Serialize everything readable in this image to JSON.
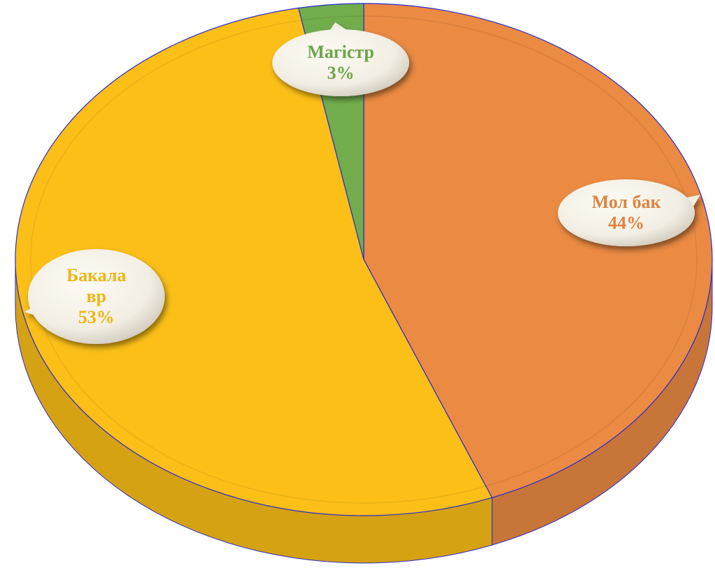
{
  "chart_data": {
    "type": "pie",
    "categories": [
      "Мол бак",
      "Бакалавр",
      "Магістр"
    ],
    "values": [
      44,
      53,
      3
    ],
    "value_labels": [
      "44%",
      "53%",
      "3%"
    ],
    "colors": [
      "#ea8a43",
      "#fbbf18",
      "#72ad4c"
    ]
  }
}
